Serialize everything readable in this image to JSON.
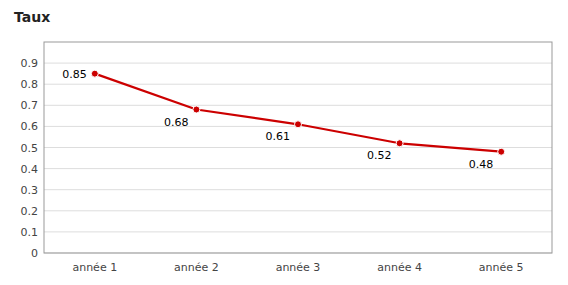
{
  "chart_data": {
    "type": "line",
    "y_label": "Taux",
    "categories": [
      "année 1",
      "année 2",
      "année 3",
      "année 4",
      "année 5"
    ],
    "values": [
      0.85,
      0.68,
      0.61,
      0.52,
      0.48
    ],
    "color": "#cc0000",
    "marker": "circle",
    "data_labels": true,
    "ylim": [
      0,
      1.0
    ],
    "yticks": [
      0,
      0.1,
      0.2,
      0.3,
      0.4,
      0.5,
      0.6,
      0.7,
      0.8,
      0.9
    ],
    "grid": true
  }
}
